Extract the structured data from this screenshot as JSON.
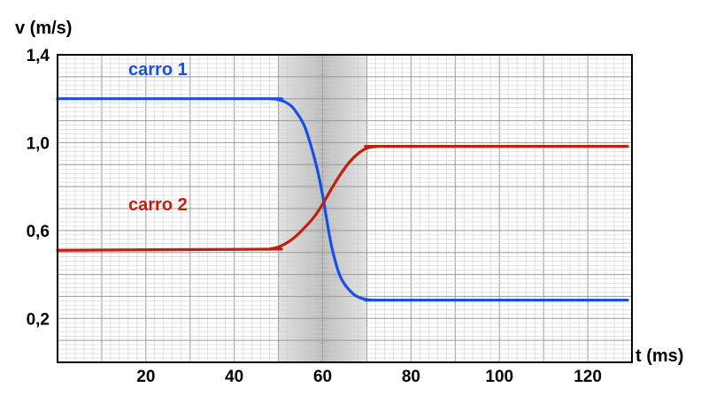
{
  "chart_data": {
    "type": "line",
    "xlabel": "t (ms)",
    "ylabel": "v (m/s)",
    "xlim": [
      0,
      130
    ],
    "ylim": [
      0.0,
      1.4
    ],
    "x_ticks": [
      20,
      40,
      60,
      80,
      100,
      120
    ],
    "x_tick_labels": [
      "20",
      "40",
      "60",
      "80",
      "100",
      "120"
    ],
    "y_ticks": [
      0.2,
      0.6,
      1.0,
      1.4
    ],
    "y_tick_labels": [
      "0,2",
      "0,6",
      "1,0",
      "1,4"
    ],
    "grid": true,
    "highlight_band": {
      "x_start": 50,
      "x_end": 70,
      "center": 60
    },
    "series": [
      {
        "name": "carro 1",
        "color": "#1a4fe6",
        "x": [
          0,
          47,
          48,
          49,
          50,
          51,
          52,
          53,
          54,
          55,
          56,
          57,
          58,
          59,
          60,
          61,
          62,
          63,
          64,
          65,
          66,
          67,
          68,
          69,
          70,
          71,
          72,
          73,
          74,
          129
        ],
        "y": [
          1.2,
          1.2,
          1.2,
          1.199,
          1.195,
          1.19,
          1.18,
          1.165,
          1.14,
          1.11,
          1.07,
          1.01,
          0.94,
          0.86,
          0.76,
          0.64,
          0.53,
          0.45,
          0.39,
          0.355,
          0.33,
          0.31,
          0.298,
          0.29,
          0.286,
          0.284,
          0.283,
          0.283,
          0.283,
          0.283
        ]
      },
      {
        "name": "carro 2",
        "color": "#c0200f",
        "x": [
          0,
          47,
          48,
          50,
          52,
          54,
          56,
          58,
          60,
          62,
          64,
          66,
          68,
          70,
          72,
          73,
          74,
          129
        ],
        "y": [
          0.51,
          0.515,
          0.516,
          0.525,
          0.545,
          0.575,
          0.615,
          0.66,
          0.72,
          0.79,
          0.855,
          0.91,
          0.95,
          0.975,
          0.982,
          0.983,
          0.983,
          0.983
        ]
      }
    ]
  }
}
